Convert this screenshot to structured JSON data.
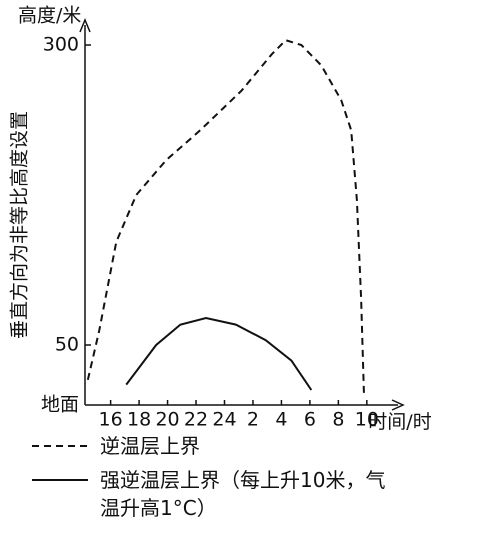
{
  "chart_data": {
    "type": "line",
    "ylabel": "高度/米",
    "xlabel": "时间/时",
    "axis_note": "垂直方向为非等比高度设置",
    "xlim": [
      14.2,
      36.4
    ],
    "ylim": [
      0,
      300
    ],
    "xticks": [
      16,
      18,
      20,
      22,
      24,
      {
        "value": 26,
        "label": "2"
      },
      {
        "value": 28,
        "label": "4"
      },
      {
        "value": 30,
        "label": "6"
      },
      {
        "value": 32,
        "label": "8"
      },
      {
        "value": 34,
        "label": "10"
      }
    ],
    "yticks": [
      {
        "value": 0,
        "label": "地面"
      },
      50,
      300
    ],
    "series": [
      {
        "name": "逆温层上界",
        "color": "#111111",
        "style": "dashed",
        "x": [
          14.4,
          15.2,
          16.4,
          17.8,
          19.9,
          22.3,
          25.2,
          27.3,
          28.3,
          29.4,
          30.8,
          32.2,
          32.9,
          33.3,
          33.6,
          33.8
        ],
        "values": [
          21,
          62,
          136,
          175,
          204,
          229,
          262,
          292,
          304,
          300,
          283,
          254,
          229,
          171,
          88,
          8
        ]
      },
      {
        "name": "强逆温层上界（每上升10米，气温升高1°C）",
        "color": "#111111",
        "style": "solid",
        "x": [
          17.1,
          19.2,
          20.9,
          22.7,
          24.8,
          26.9,
          28.7,
          30.1
        ],
        "values": [
          17,
          50,
          67,
          72.5,
          67,
          54,
          37,
          12.5
        ]
      }
    ]
  }
}
